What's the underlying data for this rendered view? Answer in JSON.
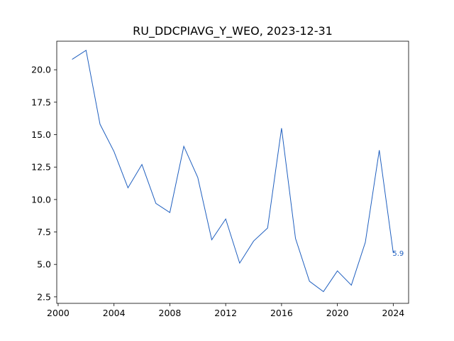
{
  "chart_data": {
    "type": "line",
    "title": "RU_DDCPIAVG_Y_WEO, 2023-12-31",
    "xlabel": "",
    "ylabel": "",
    "x": [
      2001,
      2002,
      2003,
      2004,
      2005,
      2006,
      2007,
      2008,
      2009,
      2010,
      2011,
      2012,
      2013,
      2014,
      2015,
      2016,
      2017,
      2018,
      2019,
      2020,
      2021,
      2022,
      2023,
      2024
    ],
    "series": [
      {
        "values": [
          20.8,
          21.5,
          15.8,
          13.7,
          10.9,
          12.7,
          9.7,
          9.0,
          14.1,
          11.7,
          6.9,
          8.5,
          5.1,
          6.8,
          7.8,
          15.5,
          7.0,
          3.7,
          2.9,
          4.5,
          3.4,
          6.7,
          13.8,
          5.9
        ],
        "color": "#1f5fbf",
        "end_label": "5.9"
      }
    ],
    "xlim": [
      1999.9,
      2025.1
    ],
    "ylim": [
      2.0,
      22.2
    ],
    "x_ticks": [
      "2000",
      "2004",
      "2008",
      "2012",
      "2016",
      "2020",
      "2024"
    ],
    "y_ticks": [
      "2.5",
      "5.0",
      "7.5",
      "10.0",
      "12.5",
      "15.0",
      "17.5",
      "20.0"
    ],
    "grid": false,
    "legend": "none"
  }
}
